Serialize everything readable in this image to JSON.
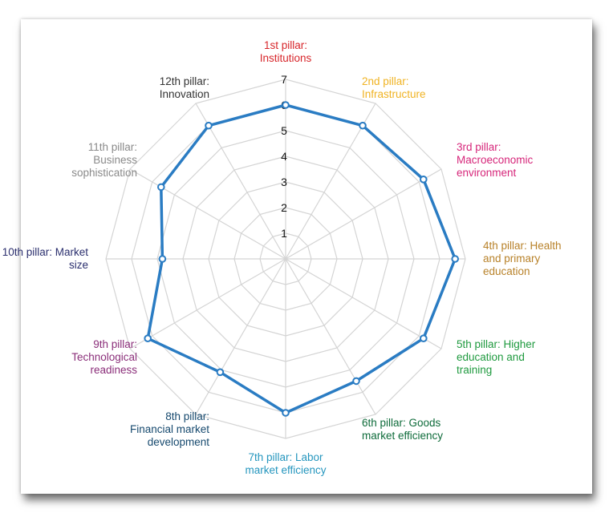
{
  "chart_data": {
    "type": "radar",
    "title": "",
    "categories": [
      "1st pillar:\nInstitutions",
      "2nd pillar:\nInfrastructure",
      "3rd pillar:\nMacroeconomic\nenvironment",
      "4th pillar: Health\nand primary\neducation",
      "5th pillar: Higher\neducation and\ntraining",
      "6th pillar: Goods\nmarket efficiency",
      "7th pillar: Labor\nmarket efficiency",
      "8th pillar:\nFinancial market\ndevelopment",
      "9th pillar:\nTechnological\nreadiness",
      "10th pillar: Market\nsize",
      "11th pillar:\nBusiness\nsophistication",
      "12th pillar:\nInnovation"
    ],
    "category_colors": [
      "#d7262b",
      "#f0b323",
      "#d6267a",
      "#b8822a",
      "#1f9a3f",
      "#0e6b3a",
      "#2596be",
      "#16496e",
      "#8b2f7a",
      "#2b2f6e",
      "#8a8a8a",
      "#333333"
    ],
    "series": [
      {
        "values": [
          6.0,
          6.0,
          6.2,
          6.6,
          6.2,
          5.5,
          6.0,
          5.1,
          6.2,
          4.8,
          5.6,
          6.0
        ]
      }
    ],
    "series_color": "#2a7cc3",
    "rlim": [
      0,
      7
    ],
    "r_ticks": [
      "1",
      "2",
      "3",
      "4",
      "5",
      "6",
      "7"
    ],
    "grid": true
  }
}
